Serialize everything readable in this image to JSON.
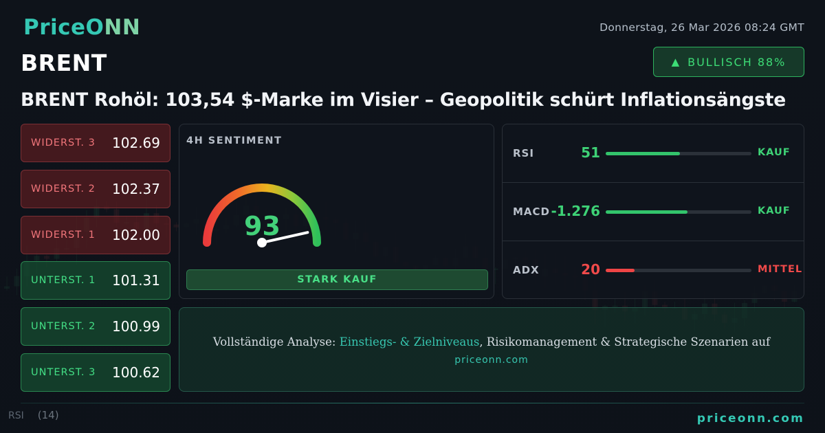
{
  "brand": {
    "name_main": "PriceO",
    "name_accent": "NN"
  },
  "date": "Donnerstag, 26 Mar 2026 08:24 GMT",
  "symbol": "BRENT",
  "bias": {
    "icon": "triangle-up-icon",
    "arrow": "▲",
    "label": "BULLISCH 88%"
  },
  "headline": "BRENT Rohöl: 103,54 $-Marke im Visier – Geopolitik schürt Inflationsängste",
  "levels": [
    {
      "label": "WIDERST. 3",
      "value": "102.69",
      "kind": "resistance"
    },
    {
      "label": "WIDERST. 2",
      "value": "102.37",
      "kind": "resistance"
    },
    {
      "label": "WIDERST. 1",
      "value": "102.00",
      "kind": "resistance"
    },
    {
      "label": "UNTERST. 1",
      "value": "101.31",
      "kind": "support"
    },
    {
      "label": "UNTERST. 2",
      "value": "100.99",
      "kind": "support"
    },
    {
      "label": "UNTERST. 3",
      "value": "100.62",
      "kind": "support"
    }
  ],
  "sentiment": {
    "title": "4H SENTIMENT",
    "score": "93",
    "score_value": 93,
    "score_max": 100,
    "verdict": "STARK KAUF"
  },
  "indicators": [
    {
      "name": "RSI",
      "value": "51",
      "fill": 0.51,
      "signal": "KAUF",
      "tone": "green"
    },
    {
      "name": "MACD",
      "value": "-1.276",
      "fill": 0.56,
      "signal": "KAUF",
      "tone": "green"
    },
    {
      "name": "ADX",
      "value": "20",
      "fill": 0.2,
      "signal": "MITTEL",
      "tone": "red"
    }
  ],
  "cta": {
    "prefix": "Vollständige Analyse: ",
    "highlight": "Einstiegs- & Zielniveaus",
    "suffix": ", Risikomanagement & Strategische Szenarien auf",
    "site": "priceonn.com"
  },
  "background": {
    "rsi_label": "RSI",
    "rsi_period": "(14)"
  },
  "footer": {
    "site": "priceonn.com"
  },
  "colors": {
    "accent": "#35c8b4",
    "bullish": "#3ed276",
    "bearish": "#f04a4a",
    "resistance_bg": "#5a1c20",
    "support_bg": "#164e30"
  }
}
